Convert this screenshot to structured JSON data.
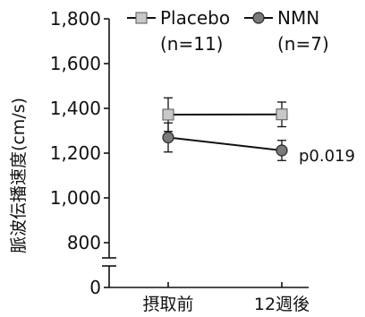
{
  "chart_data": {
    "type": "line",
    "ylabel": "脈波伝播速度(cm/s)",
    "categories": [
      "摂取前",
      "12週後"
    ],
    "y_ticks": [
      "0",
      "800",
      "1,000",
      "1,200",
      "1,400",
      "1,600",
      "1,800"
    ],
    "y_axis_break": true,
    "ylim": [
      800,
      1800
    ],
    "grid": false,
    "legend_position": "top",
    "series": [
      {
        "name": "Placebo",
        "n_label": "(n=11)",
        "marker": "square",
        "marker_color": "#c8c8c8",
        "values": [
          1372,
          1373
        ],
        "error": [
          75,
          55
        ]
      },
      {
        "name": "NMN",
        "n_label": "(n=7)",
        "marker": "circle",
        "marker_color": "#7a7a7a",
        "values": [
          1270,
          1212
        ],
        "error": [
          65,
          45
        ]
      }
    ],
    "annotation": "p0.019"
  }
}
